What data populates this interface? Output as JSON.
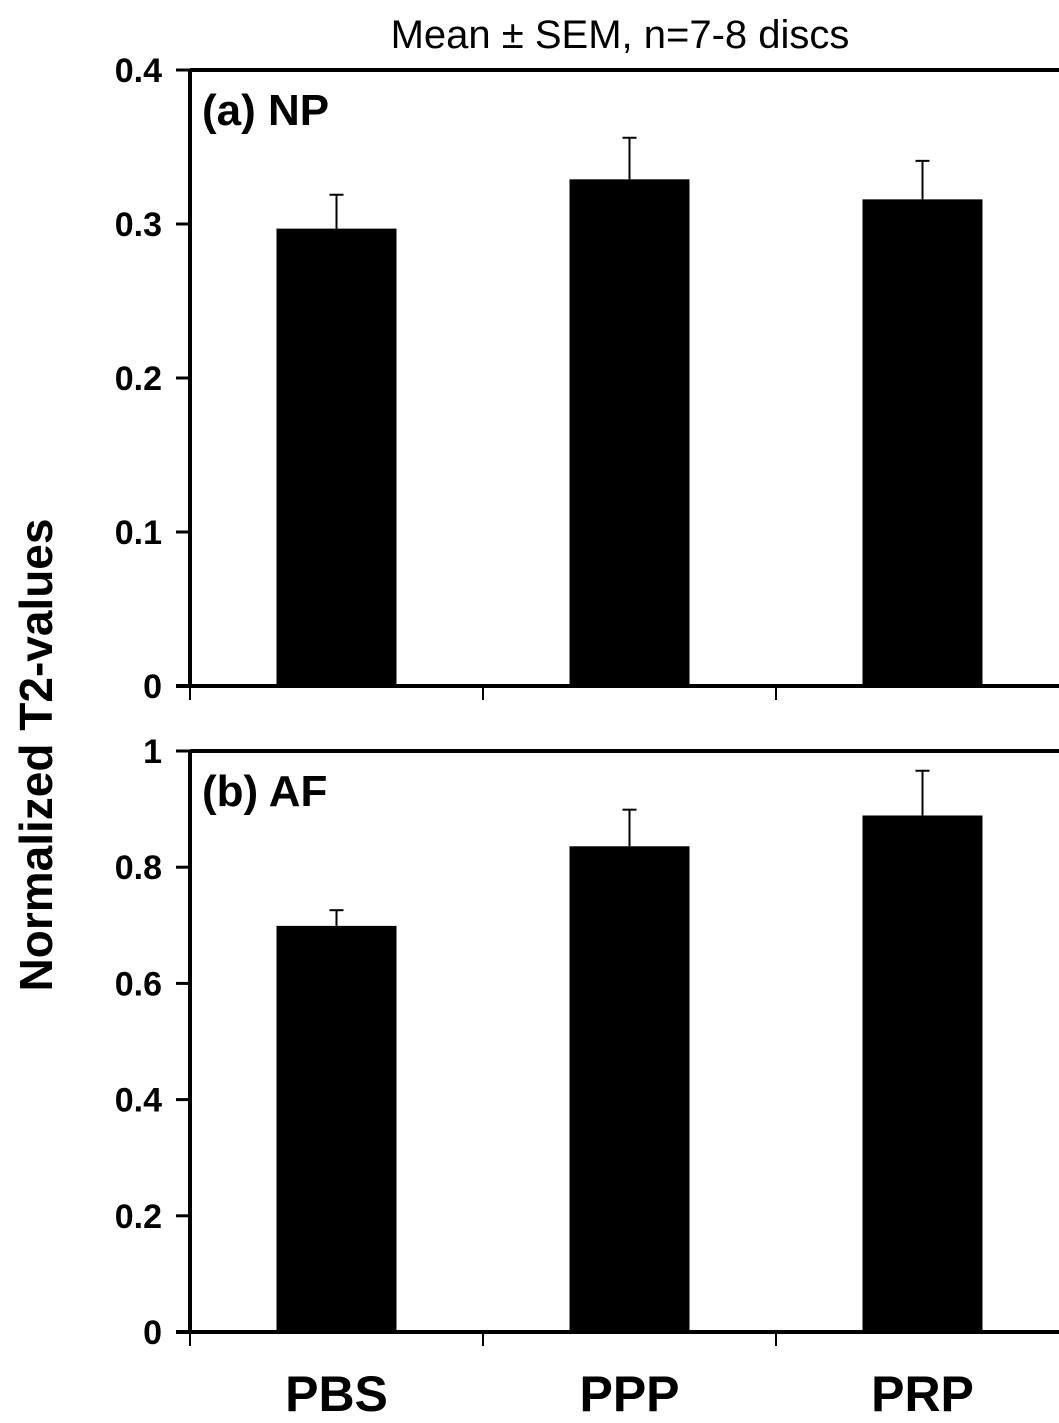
{
  "chart_data": {
    "type": "bar",
    "title": "Mean ± SEM, n=7-8 discs",
    "ylabel": "Normalized T2-values",
    "categories": [
      "PBS",
      "PPP",
      "PRP"
    ],
    "bar_color": "#000000",
    "grid": false,
    "panels": [
      {
        "label": "(a) NP",
        "ylim": [
          0,
          0.4
        ],
        "yticks": [
          "0",
          "0.1",
          "0.2",
          "0.3",
          "0.4"
        ],
        "values": [
          0.297,
          0.329,
          0.316
        ],
        "errors": [
          0.022,
          0.027,
          0.025
        ]
      },
      {
        "label": "(b) AF",
        "ylim": [
          0,
          1
        ],
        "yticks": [
          "0",
          "0.2",
          "0.4",
          "0.6",
          "0.8",
          "1"
        ],
        "values": [
          0.699,
          0.836,
          0.889
        ],
        "errors": [
          0.027,
          0.063,
          0.077
        ]
      }
    ]
  }
}
